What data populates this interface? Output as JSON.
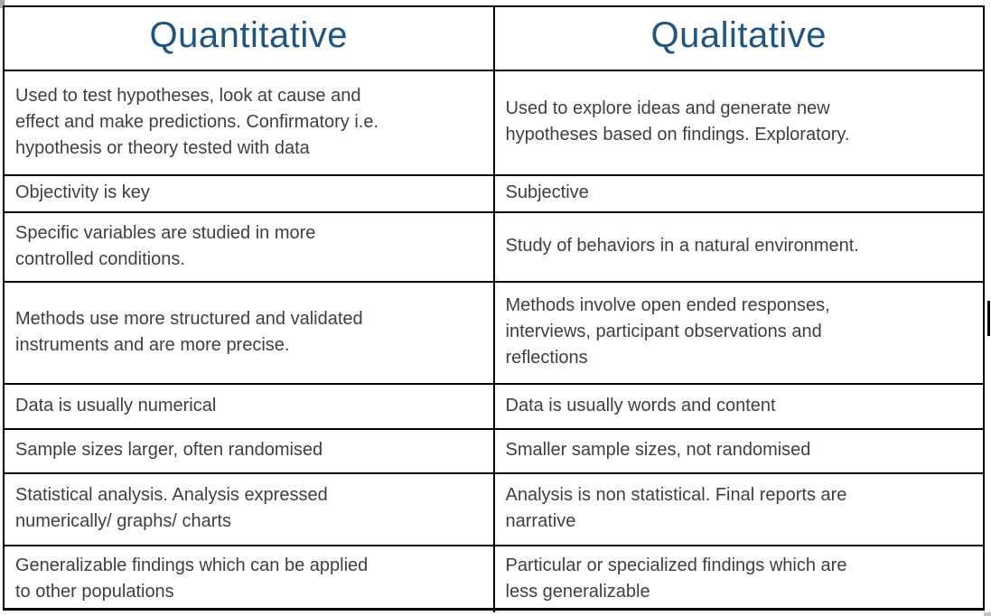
{
  "page_title": "Quantitative vs Qualitative comparison table",
  "colors": {
    "header_text": "#1f5582",
    "body_text": "#3f3f3f",
    "border": "#000000",
    "background": "#ffffff"
  },
  "table": {
    "headers": [
      {
        "label": "Quantitative"
      },
      {
        "label": "Qualitative"
      }
    ],
    "rows": [
      {
        "quantitative": "Used to test hypotheses, look at cause and\neffect and make predictions. Confirmatory i.e.\nhypothesis or theory tested with data",
        "qualitative": "Used to explore ideas and generate new\nhypotheses based on findings. Exploratory."
      },
      {
        "quantitative": "Objectivity is key",
        "qualitative": "Subjective"
      },
      {
        "quantitative": "Specific variables are studied in more\ncontrolled conditions.",
        "qualitative": "Study of behaviors in a natural environment."
      },
      {
        "quantitative": "Methods use more structured and validated\ninstruments and are more precise.",
        "qualitative": "Methods involve open ended responses,\ninterviews, participant observations and\nreflections"
      },
      {
        "quantitative": "Data is usually numerical",
        "qualitative": "Data is usually words and content"
      },
      {
        "quantitative": "Sample sizes larger, often randomised",
        "qualitative": "Smaller sample sizes, not randomised"
      },
      {
        "quantitative": "Statistical analysis. Analysis expressed\nnumerically/ graphs/ charts",
        "qualitative": "Analysis is non statistical. Final reports are\nnarrative"
      },
      {
        "quantitative": "Generalizable findings which can be applied\nto other populations",
        "qualitative": "Particular or specialized findings which are\nless generalizable"
      }
    ]
  }
}
